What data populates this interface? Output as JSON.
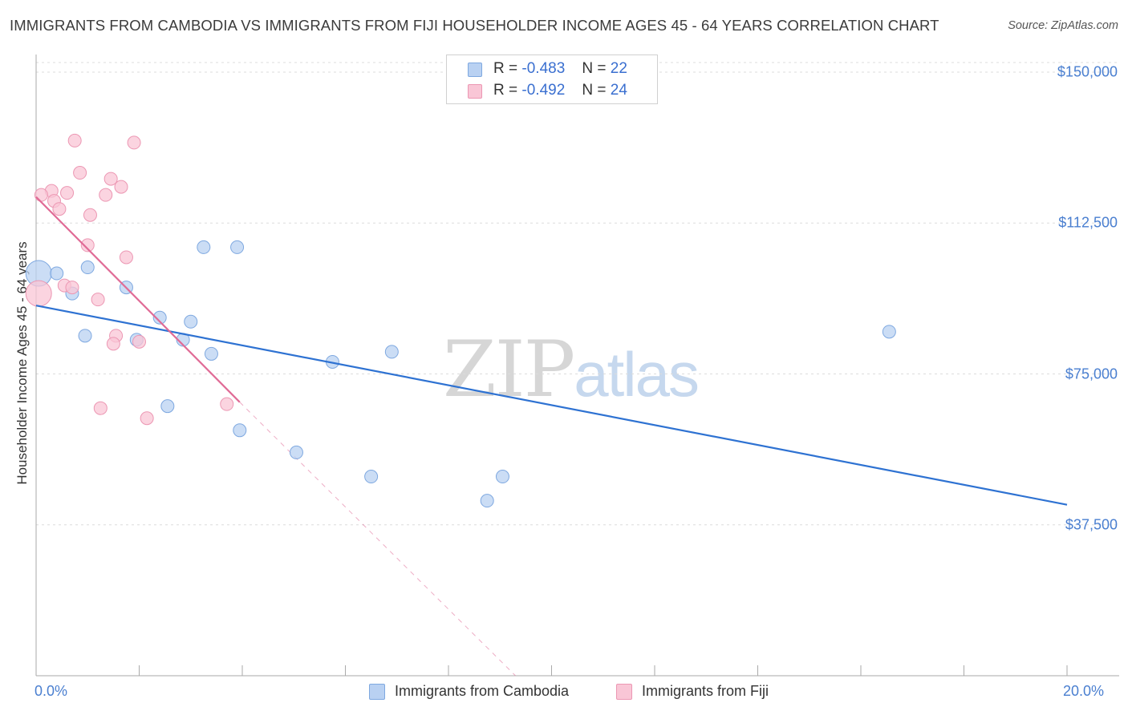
{
  "chart_data": {
    "type": "scatter",
    "title": "IMMIGRANTS FROM CAMBODIA VS IMMIGRANTS FROM FIJI HOUSEHOLDER INCOME AGES 45 - 64 YEARS CORRELATION CHART",
    "source": "Source: ZipAtlas.com",
    "ylabel": "Householder Income Ages 45 - 64 years",
    "xlabel": "",
    "xlim": [
      0,
      20
    ],
    "ylim": [
      0,
      153000
    ],
    "x_tick_labels": [
      "0.0%",
      "20.0%"
    ],
    "y_ticks": [
      {
        "value": 150000,
        "label": "$150,000"
      },
      {
        "value": 112500,
        "label": "$112,500"
      },
      {
        "value": 75000,
        "label": "$75,000"
      },
      {
        "value": 37500,
        "label": "$37,500"
      }
    ],
    "series": [
      {
        "name": "Immigrants from Cambodia",
        "r_label": "R =",
        "r_value": "-0.483",
        "n_label": "N =",
        "n_value": "22",
        "fill": "#b9d1f2",
        "stroke": "#7ea8e0",
        "line_color": "#2e72d2",
        "trend": {
          "x0": 0.0,
          "y0": 92000,
          "x1": 20.0,
          "y1": 42500
        },
        "points": [
          {
            "x": 0.05,
            "y": 100000,
            "big": true
          },
          {
            "x": 0.4,
            "y": 100000
          },
          {
            "x": 1.0,
            "y": 101500
          },
          {
            "x": 0.95,
            "y": 84500
          },
          {
            "x": 0.7,
            "y": 95000
          },
          {
            "x": 1.75,
            "y": 96500
          },
          {
            "x": 2.4,
            "y": 89000
          },
          {
            "x": 2.85,
            "y": 83500
          },
          {
            "x": 3.25,
            "y": 106500
          },
          {
            "x": 3.9,
            "y": 106500
          },
          {
            "x": 3.0,
            "y": 88000
          },
          {
            "x": 3.4,
            "y": 80000
          },
          {
            "x": 5.75,
            "y": 78000
          },
          {
            "x": 6.9,
            "y": 80500
          },
          {
            "x": 2.55,
            "y": 67000
          },
          {
            "x": 3.95,
            "y": 61000
          },
          {
            "x": 5.05,
            "y": 55500
          },
          {
            "x": 6.5,
            "y": 49500
          },
          {
            "x": 8.75,
            "y": 43500
          },
          {
            "x": 9.05,
            "y": 49500
          },
          {
            "x": 16.55,
            "y": 85500
          },
          {
            "x": 1.95,
            "y": 83500
          }
        ]
      },
      {
        "name": "Immigrants from Fiji",
        "r_label": "R =",
        "r_value": "-0.492",
        "n_label": "N =",
        "n_value": "24",
        "fill": "#f9c6d6",
        "stroke": "#ec97b3",
        "line_color": "#e06b96",
        "trend": {
          "x0": 0.0,
          "y0": 119000,
          "x1": 3.95,
          "y1": 68000
        },
        "trend_ext": {
          "x0": 3.95,
          "y0": 68000,
          "x1": 9.3,
          "y1": 0
        },
        "points": [
          {
            "x": 0.05,
            "y": 95000,
            "big": true
          },
          {
            "x": 0.3,
            "y": 120500
          },
          {
            "x": 0.35,
            "y": 118000
          },
          {
            "x": 0.1,
            "y": 119500
          },
          {
            "x": 0.45,
            "y": 116000
          },
          {
            "x": 0.6,
            "y": 120000
          },
          {
            "x": 0.75,
            "y": 133000
          },
          {
            "x": 0.85,
            "y": 125000
          },
          {
            "x": 1.05,
            "y": 114500
          },
          {
            "x": 1.0,
            "y": 107000
          },
          {
            "x": 1.35,
            "y": 119500
          },
          {
            "x": 1.45,
            "y": 123500
          },
          {
            "x": 1.65,
            "y": 121500
          },
          {
            "x": 1.9,
            "y": 132500
          },
          {
            "x": 1.75,
            "y": 104000
          },
          {
            "x": 0.55,
            "y": 97000
          },
          {
            "x": 0.7,
            "y": 96500
          },
          {
            "x": 1.2,
            "y": 93500
          },
          {
            "x": 1.55,
            "y": 84500
          },
          {
            "x": 1.5,
            "y": 82500
          },
          {
            "x": 2.0,
            "y": 83000
          },
          {
            "x": 1.25,
            "y": 66500
          },
          {
            "x": 2.15,
            "y": 64000
          },
          {
            "x": 3.7,
            "y": 67500
          }
        ]
      }
    ]
  },
  "watermark": {
    "zip": "ZIP",
    "atlas": "atlas"
  }
}
